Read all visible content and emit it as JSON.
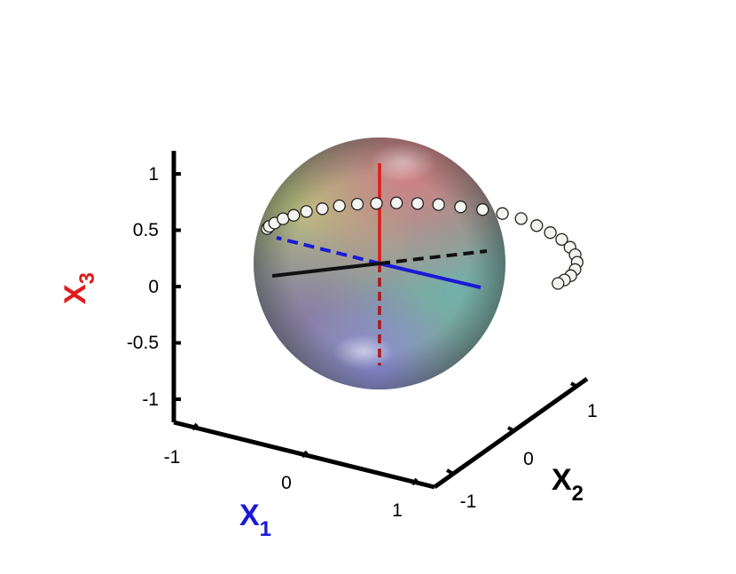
{
  "chart_data": {
    "type": "scatter",
    "subtype": "3d-bloch-sphere",
    "grid": false,
    "axes": {
      "x1": {
        "label": "X",
        "subscript": "1",
        "color": "#1a1ad6",
        "ticks": [
          "-1",
          "0",
          "1"
        ],
        "range": [
          -1,
          1
        ]
      },
      "x2": {
        "label": "X",
        "subscript": "2",
        "color": "#000000",
        "ticks": [
          "-1",
          "0",
          "1"
        ],
        "range": [
          -1,
          1
        ]
      },
      "x3": {
        "label": "X",
        "subscript": "3",
        "color": "#e01a1a",
        "ticks": [
          "1",
          "0.5",
          "0",
          "-0.5",
          "-1"
        ],
        "range": [
          -1,
          1
        ]
      }
    },
    "sphere_axes": {
      "x1_axis_color": "#1a1ad6",
      "x2_axis_color": "#000000",
      "x3_axis_color": "#e01a1a"
    },
    "trajectory": {
      "marker": "open-circle",
      "x1": [
        -0.05,
        -0.05,
        -0.04,
        -0.02,
        0.0,
        0.02,
        0.05,
        0.08,
        0.12,
        0.16,
        0.21,
        0.27,
        0.34,
        0.42,
        0.51,
        0.6,
        0.69,
        0.77,
        0.84,
        0.9,
        0.95,
        0.98,
        1.0,
        1.0,
        0.99,
        0.98,
        0.97
      ],
      "x2": [
        -1.0,
        -0.98,
        -0.94,
        -0.88,
        -0.8,
        -0.7,
        -0.58,
        -0.45,
        -0.32,
        -0.18,
        -0.04,
        0.1,
        0.23,
        0.36,
        0.48,
        0.58,
        0.67,
        0.74,
        0.8,
        0.85,
        0.88,
        0.9,
        0.9,
        0.88,
        0.85,
        0.8,
        0.75
      ],
      "x3": [
        0.46,
        0.48,
        0.51,
        0.55,
        0.58,
        0.61,
        0.63,
        0.65,
        0.66,
        0.66,
        0.66,
        0.65,
        0.64,
        0.62,
        0.6,
        0.57,
        0.53,
        0.47,
        0.41,
        0.35,
        0.28,
        0.21,
        0.14,
        0.07,
        0.01,
        -0.03,
        -0.06
      ]
    }
  }
}
